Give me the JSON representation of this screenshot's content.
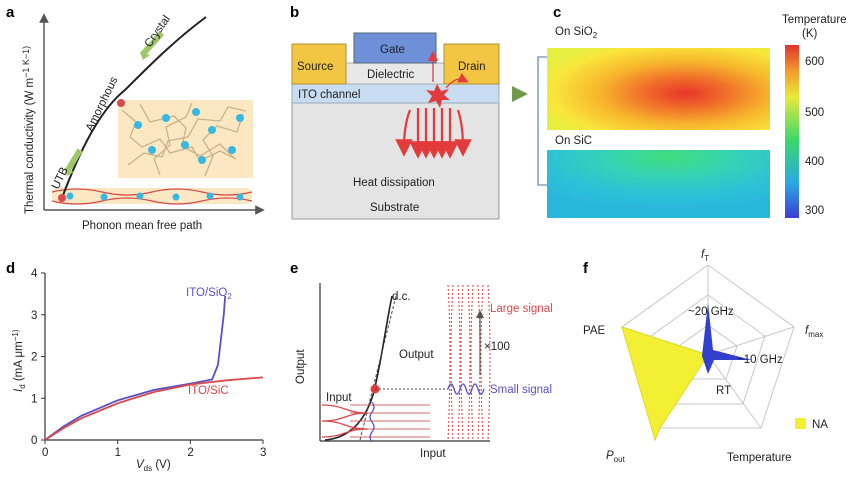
{
  "panel_a": {
    "label": "a",
    "ylabel": "Thermal conductivity (W m",
    "ylabel_unit": "−1 K−1)",
    "xlabel": "Phonon mean free path",
    "crystal": "Crystal",
    "amorphous": "Amorphous",
    "utb": "UTB"
  },
  "panel_b": {
    "label": "b",
    "gate": "Gate",
    "source": "Source",
    "drain": "Drain",
    "dielectric": "Dielectric",
    "channel": "ITO channel",
    "heat": "Heat dissipation",
    "substrate": "Substrate"
  },
  "panel_c": {
    "label": "c",
    "on_sio2": "On SiO",
    "sio2_sub": "2",
    "on_sic": "On SiC",
    "colorbar_title": "Temperature",
    "colorbar_unit": "(K)",
    "colorbar_ticks": [
      "600",
      "500",
      "400",
      "300"
    ]
  },
  "panel_d": {
    "label": "d",
    "ylabel": "I",
    "ylabel_sub": "d",
    "ylabel_unit": " (mA μm",
    "ylabel_unit_tail": "−1)",
    "xlabel": "V",
    "xlabel_sub": "ds",
    "xlabel_unit": " (V)",
    "legend_sio2": "ITO/SiO",
    "legend_sio2_sub": "2",
    "legend_sic": "ITO/SiC",
    "xticks": [
      "0",
      "1",
      "2",
      "3"
    ],
    "yticks": [
      "0",
      "1",
      "2",
      "3",
      "4"
    ],
    "colors": {
      "sio2": "#5b4fc4",
      "sic": "#d9484a"
    }
  },
  "panel_e": {
    "label": "e",
    "ylabel": "Output",
    "xlabel": "Input",
    "dc": "d.c.",
    "large_signal": "Large signal",
    "small_signal": "Small signal",
    "output": "Output",
    "input": "Input",
    "gain": "×100"
  },
  "panel_f": {
    "label": "f",
    "axes": {
      "ft": "f",
      "ft_sub": "T",
      "fmax": "f",
      "fmax_sub": "max",
      "temperature": "Temperature",
      "pout": "P",
      "pout_sub": "out",
      "pae": "PAE"
    },
    "ann_20ghz": "~20 GHz",
    "ann_10ghz": "~10 GHz",
    "ann_rt": "RT",
    "legend": "NA",
    "colors": {
      "na": "#f3ef33",
      "this": "#3140cf"
    }
  },
  "chart_data": [
    {
      "type": "line",
      "title": "",
      "xlabel": "Vds (V)",
      "ylabel": "Id (mA μm−1)",
      "xlim": [
        0,
        3
      ],
      "ylim": [
        0,
        4
      ],
      "series": [
        {
          "name": "ITO/SiO2",
          "x": [
            0,
            0.25,
            0.5,
            1.0,
            1.5,
            2.0,
            2.3,
            2.38,
            2.42,
            2.46,
            2.48
          ],
          "y": [
            0,
            0.32,
            0.58,
            0.95,
            1.2,
            1.35,
            1.45,
            1.8,
            2.4,
            3.0,
            3.45
          ]
        },
        {
          "name": "ITO/SiC",
          "x": [
            0,
            0.25,
            0.5,
            1.0,
            1.5,
            2.0,
            2.5,
            3.0
          ],
          "y": [
            0,
            0.28,
            0.52,
            0.88,
            1.15,
            1.33,
            1.43,
            1.5
          ]
        }
      ]
    }
  ]
}
